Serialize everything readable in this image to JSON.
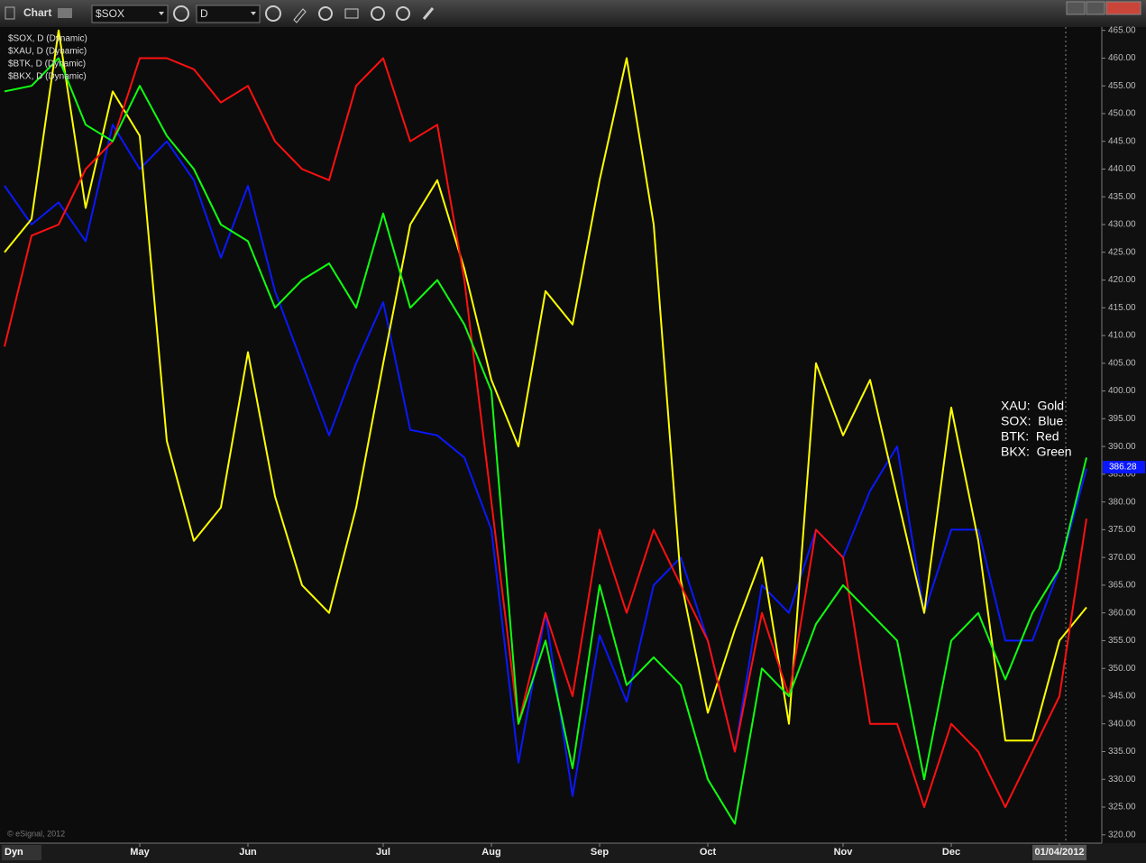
{
  "toolbar": {
    "title": "Chart",
    "symbol": "$SOX",
    "interval": "D",
    "mode": "Dyn",
    "copyright": "© eSignal, 2012"
  },
  "chart_data": {
    "type": "line",
    "categories": [
      null,
      null,
      null,
      null,
      null,
      "May",
      null,
      null,
      null,
      "Jun",
      null,
      null,
      null,
      null,
      "Jul",
      null,
      null,
      null,
      "Aug",
      null,
      null,
      null,
      "Sep",
      null,
      null,
      null,
      "Oct",
      null,
      null,
      null,
      null,
      "Nov",
      null,
      null,
      null,
      "Dec",
      null,
      null,
      null,
      "01/04/2012",
      null
    ],
    "series": [
      {
        "name": "$SOX, D (Dynamic)",
        "color": "#0a18ff",
        "values": [
          437,
          430,
          434,
          427,
          448,
          440,
          445,
          438,
          424,
          437,
          418,
          405,
          392,
          405,
          416,
          393,
          392,
          388,
          375,
          333,
          360,
          327,
          356,
          344,
          365,
          370,
          355,
          335,
          365,
          360,
          375,
          370,
          382,
          390,
          360,
          375,
          375,
          355,
          355,
          368,
          386
        ]
      },
      {
        "name": "$XAU, D (Dynamic)",
        "color": "#ffff00",
        "values": [
          425,
          431,
          465,
          433,
          454,
          446,
          391,
          373,
          379,
          407,
          381,
          365,
          360,
          379,
          405,
          430,
          438,
          422,
          402,
          390,
          418,
          412,
          438,
          460,
          430,
          366,
          342,
          357,
          370,
          340,
          405,
          392,
          402,
          381,
          360,
          397,
          373,
          337,
          337,
          355,
          361
        ]
      },
      {
        "name": "$BTK, D (Dynamic)",
        "color": "#ff1010",
        "values": [
          408,
          428,
          430,
          440,
          445,
          460,
          460,
          458,
          452,
          455,
          445,
          440,
          438,
          455,
          460,
          445,
          448,
          420,
          380,
          340,
          360,
          345,
          375,
          360,
          375,
          365,
          355,
          335,
          360,
          345,
          375,
          370,
          340,
          340,
          325,
          340,
          335,
          325,
          335,
          345,
          377
        ]
      },
      {
        "name": "$BKX, D (Dynamic)",
        "color": "#10ff10",
        "values": [
          454,
          455,
          460,
          448,
          445,
          455,
          446,
          440,
          430,
          427,
          415,
          420,
          423,
          415,
          432,
          415,
          420,
          412,
          400,
          340,
          355,
          332,
          365,
          347,
          352,
          347,
          330,
          322,
          350,
          345,
          358,
          365,
          360,
          355,
          330,
          355,
          360,
          348,
          360,
          368,
          388
        ]
      }
    ],
    "last_price": 386.28,
    "annotations": [
      "XAU:  Gold",
      "SOX:  Blue",
      "BTK:  Red",
      "BKX:  Green"
    ],
    "ylim": [
      318.5,
      465.6
    ],
    "yticks": [
      {
        "value": 320,
        "label": "320.00"
      },
      {
        "value": 325,
        "label": "325.00"
      },
      {
        "value": 330,
        "label": "330.00"
      },
      {
        "value": 335,
        "label": "335.00"
      },
      {
        "value": 340,
        "label": "340.00"
      },
      {
        "value": 345,
        "label": "345.00"
      },
      {
        "value": 350,
        "label": "350.00"
      },
      {
        "value": 355,
        "label": "355.00"
      },
      {
        "value": 360,
        "label": "360.00"
      },
      {
        "value": 365,
        "label": "365.00"
      },
      {
        "value": 370,
        "label": "370.00"
      },
      {
        "value": 375,
        "label": "375.00"
      },
      {
        "value": 380,
        "label": "380.00"
      },
      {
        "value": 385,
        "label": "385.00"
      },
      {
        "value": 390,
        "label": "390.00"
      },
      {
        "value": 395,
        "label": "395.00"
      },
      {
        "value": 400,
        "label": "400.00"
      },
      {
        "value": 405,
        "label": "405.00"
      },
      {
        "value": 410,
        "label": "410.00"
      },
      {
        "value": 415,
        "label": "415.00"
      },
      {
        "value": 420,
        "label": "420.00"
      },
      {
        "value": 425,
        "label": "425.00"
      },
      {
        "value": 430,
        "label": "430.00"
      },
      {
        "value": 435,
        "label": "435.00"
      },
      {
        "value": 440,
        "label": "440.00"
      },
      {
        "value": 445,
        "label": "445.00"
      },
      {
        "value": 450,
        "label": "450.00"
      },
      {
        "value": 455,
        "label": "455.00"
      },
      {
        "value": 460,
        "label": "460.00"
      },
      {
        "value": 465,
        "label": "465.00"
      }
    ],
    "grid": false
  }
}
